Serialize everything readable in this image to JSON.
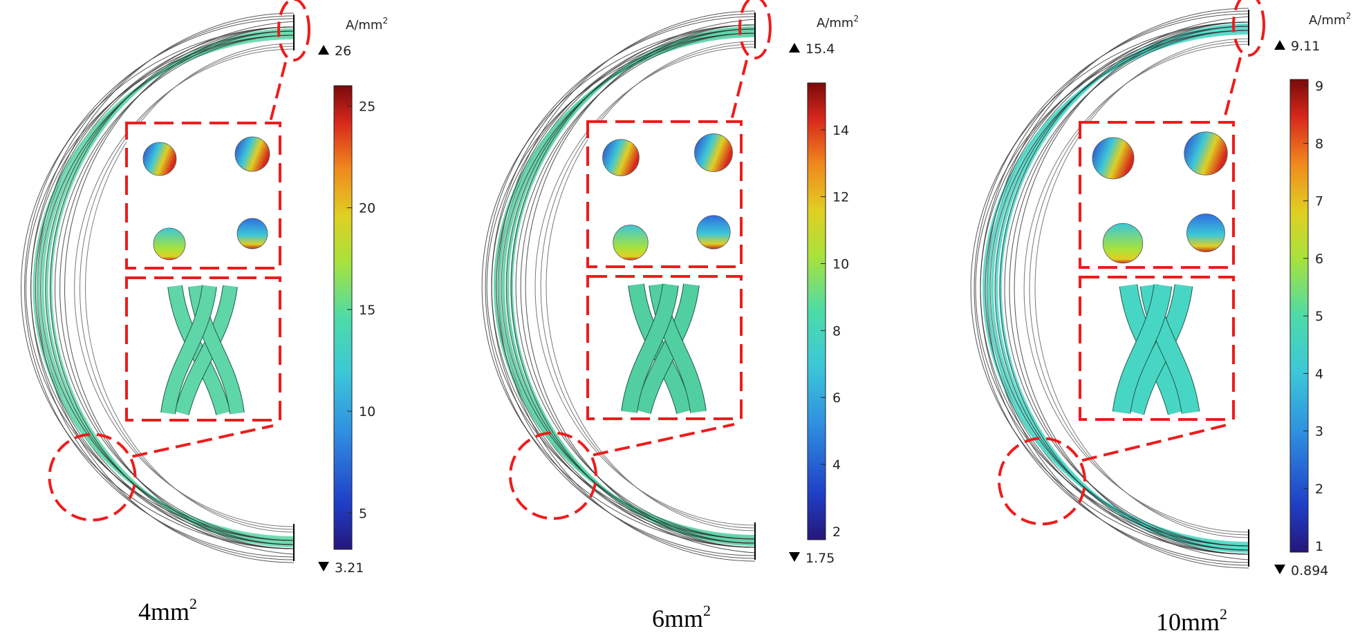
{
  "unit": {
    "base": "A/mm",
    "sup": "2"
  },
  "colors": {
    "highlight": "#ee1c1c",
    "wire_outline": "#2b2b2b",
    "colormap": [
      "#26167a",
      "#1f3fc6",
      "#2f8ee0",
      "#3cc7d8",
      "#4ddba8",
      "#a8e23c",
      "#e0cf22",
      "#f08a1e",
      "#d8281c",
      "#7a0a0a"
    ]
  },
  "panels": [
    {
      "caption": {
        "base": "4mm",
        "sup": "2"
      },
      "max_label": "26",
      "min_label": "3.21",
      "ticks": [
        "25",
        "20",
        "15",
        "10",
        "5"
      ],
      "tick_values": [
        25,
        20,
        15,
        10,
        5
      ],
      "range": [
        3.21,
        26
      ],
      "strand_color": "#5fd6a8"
    },
    {
      "caption": {
        "base": "6mm",
        "sup": "2"
      },
      "max_label": "15.4",
      "min_label": "1.75",
      "ticks": [
        "14",
        "12",
        "10",
        "8",
        "6",
        "4",
        "2"
      ],
      "tick_values": [
        14,
        12,
        10,
        8,
        6,
        4,
        2
      ],
      "range": [
        1.75,
        15.4
      ],
      "strand_color": "#52cfa0"
    },
    {
      "caption": {
        "base": "10mm",
        "sup": "2"
      },
      "max_label": "9.11",
      "min_label": "0.894",
      "ticks": [
        "9",
        "8",
        "7",
        "6",
        "5",
        "4",
        "3",
        "2",
        "1"
      ],
      "tick_values": [
        9,
        8,
        7,
        6,
        5,
        4,
        3,
        2,
        1
      ],
      "range": [
        0.894,
        9.11
      ],
      "strand_color": "#48d6c4"
    }
  ]
}
